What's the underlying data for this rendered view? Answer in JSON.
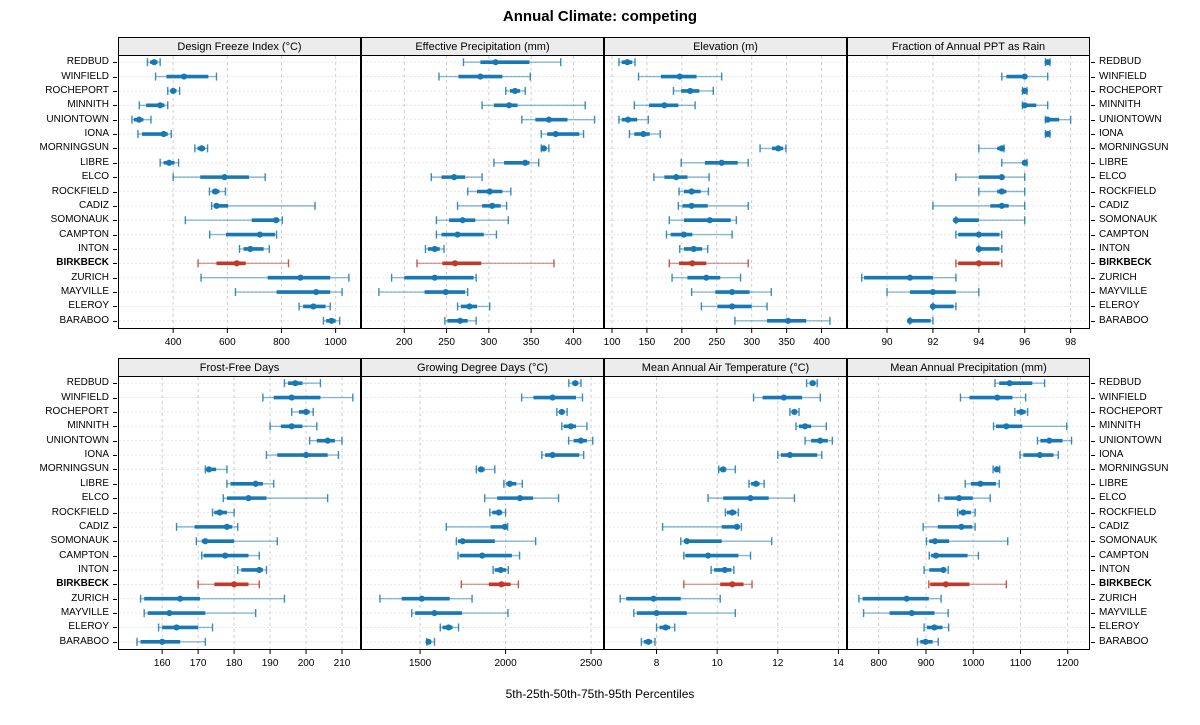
{
  "title": "Annual Climate: competing",
  "caption": "5th-25th-50th-75th-95th Percentiles",
  "colors": {
    "series": "#1878B4",
    "highlight": "#C03A2B",
    "strip_bg": "#ECECEC",
    "grid": "#CFCFCF",
    "border": "#000000"
  },
  "chart_data": {
    "type": "dotplot-percentiles",
    "percentile_labels": [
      "5th",
      "25th",
      "50th",
      "75th",
      "95th"
    ],
    "legend_note": "5th-25th-50th-75th-95th Percentiles",
    "highlight": "BIRKBECK",
    "locations": [
      "REDBUD",
      "WINFIELD",
      "ROCHEPORT",
      "MINNITH",
      "UNIONTOWN",
      "IONA",
      "MORNINGSUN",
      "LIBRE",
      "ELCO",
      "ROCKFIELD",
      "CADIZ",
      "SOMONAUK",
      "CAMPTON",
      "INTON",
      "BIRKBECK",
      "ZURICH",
      "MAYVILLE",
      "ELEROY",
      "BARABOO"
    ],
    "panels": [
      {
        "title": "Design Freeze Index (°C)",
        "xlim": [
          200,
          1090
        ],
        "ticks": [
          400,
          600,
          800,
          1000
        ],
        "series": [
          [
            305,
            315,
            330,
            342,
            352
          ],
          [
            335,
            375,
            440,
            530,
            560
          ],
          [
            380,
            390,
            400,
            412,
            424
          ],
          [
            275,
            300,
            352,
            368,
            380
          ],
          [
            248,
            255,
            274,
            290,
            318
          ],
          [
            270,
            285,
            365,
            380,
            393
          ],
          [
            480,
            490,
            505,
            518,
            527
          ],
          [
            352,
            365,
            385,
            405,
            420
          ],
          [
            400,
            500,
            590,
            680,
            740
          ],
          [
            534,
            543,
            556,
            571,
            593
          ],
          [
            542,
            550,
            560,
            603,
            924
          ],
          [
            445,
            690,
            780,
            792,
            803
          ],
          [
            535,
            595,
            720,
            776,
            782
          ],
          [
            645,
            660,
            685,
            734,
            755
          ],
          [
            492,
            560,
            635,
            668,
            826
          ],
          [
            503,
            749,
            870,
            980,
            1049
          ],
          [
            630,
            782,
            928,
            980,
            1024
          ],
          [
            865,
            880,
            918,
            963,
            980
          ],
          [
            955,
            965,
            985,
            1000,
            1015
          ]
        ]
      },
      {
        "title": "Effective Precipitation (mm)",
        "xlim": [
          150,
          435
        ],
        "ticks": [
          200,
          250,
          300,
          350,
          400
        ],
        "series": [
          [
            270,
            290,
            308,
            348,
            385
          ],
          [
            241,
            264,
            290,
            316,
            349
          ],
          [
            320,
            325,
            331,
            337,
            343
          ],
          [
            292,
            306,
            324,
            334,
            414
          ],
          [
            339,
            355,
            371,
            393,
            425
          ],
          [
            362,
            369,
            379,
            407,
            412
          ],
          [
            362,
            363,
            365,
            367,
            371
          ],
          [
            306,
            318,
            343,
            348,
            359
          ],
          [
            232,
            244,
            259,
            272,
            292
          ],
          [
            275,
            286,
            301,
            316,
            326
          ],
          [
            263,
            292,
            304,
            314,
            321
          ],
          [
            238,
            253,
            269,
            284,
            323
          ],
          [
            238,
            244,
            263,
            294,
            309
          ],
          [
            225,
            228,
            236,
            242,
            247
          ],
          [
            215,
            245,
            260,
            291,
            377
          ],
          [
            185,
            200,
            236,
            282,
            285
          ],
          [
            170,
            224,
            249,
            272,
            275
          ],
          [
            263,
            267,
            277,
            286,
            301
          ],
          [
            248,
            251,
            266,
            275,
            285
          ]
        ]
      },
      {
        "title": "Elevation (m)",
        "xlim": [
          90,
          435
        ],
        "ticks": [
          100,
          150,
          200,
          250,
          300,
          350,
          400
        ],
        "series": [
          [
            110,
            114,
            122,
            129,
            133
          ],
          [
            138,
            170,
            197,
            221,
            257
          ],
          [
            188,
            199,
            212,
            225,
            245
          ],
          [
            132,
            153,
            175,
            195,
            219
          ],
          [
            110,
            114,
            123,
            136,
            152
          ],
          [
            125,
            132,
            145,
            154,
            169
          ],
          [
            312,
            329,
            338,
            345,
            349
          ],
          [
            199,
            233,
            257,
            280,
            295
          ],
          [
            160,
            175,
            192,
            208,
            239
          ],
          [
            196,
            203,
            214,
            227,
            238
          ],
          [
            195,
            201,
            214,
            237,
            295
          ],
          [
            182,
            203,
            240,
            270,
            278
          ],
          [
            178,
            184,
            203,
            215,
            272
          ],
          [
            197,
            203,
            217,
            229,
            237
          ],
          [
            182,
            196,
            215,
            235,
            295
          ],
          [
            186,
            208,
            235,
            255,
            284
          ],
          [
            214,
            248,
            272,
            297,
            328
          ],
          [
            228,
            251,
            272,
            300,
            322
          ],
          [
            276,
            322,
            352,
            378,
            412
          ]
        ]
      },
      {
        "title": "Fraction of Annual PPT as Rain",
        "xlim": [
          88.3,
          98.8
        ],
        "ticks": [
          90,
          92,
          94,
          96,
          98
        ],
        "series": [
          [
            96.9,
            97,
            97,
            97,
            97.1
          ],
          [
            95,
            95.2,
            96,
            96.1,
            97
          ],
          [
            95.9,
            96,
            96,
            96,
            96.1
          ],
          [
            95.9,
            96,
            96,
            96.5,
            97
          ],
          [
            96.9,
            97,
            97,
            97.5,
            98
          ],
          [
            96.9,
            97,
            97,
            97,
            97.1
          ],
          [
            94,
            94.8,
            95,
            95,
            95.1
          ],
          [
            95,
            95.9,
            96,
            96,
            96.1
          ],
          [
            93,
            94,
            95,
            95,
            96
          ],
          [
            94,
            94.8,
            95,
            95.2,
            96
          ],
          [
            92,
            94.5,
            95,
            95.3,
            96
          ],
          [
            93,
            93,
            93,
            94,
            96
          ],
          [
            93,
            93.1,
            94,
            94.9,
            95
          ],
          [
            94,
            94,
            94,
            94.9,
            95
          ],
          [
            93,
            93.1,
            94,
            94.9,
            95
          ],
          [
            88.9,
            89,
            91,
            92,
            93
          ],
          [
            90,
            91,
            92,
            93,
            94
          ],
          [
            92,
            92,
            92,
            92.9,
            93
          ],
          [
            91,
            91,
            91,
            91.9,
            92
          ]
        ]
      },
      {
        "title": "Frost-Free Days",
        "xlim": [
          148,
          215
        ],
        "ticks": [
          160,
          170,
          180,
          190,
          200,
          210
        ],
        "series": [
          [
            194,
            195,
            197,
            199,
            204
          ],
          [
            188,
            191,
            196,
            204,
            213
          ],
          [
            196,
            198,
            200,
            201,
            202
          ],
          [
            190,
            193,
            196,
            199,
            203
          ],
          [
            201,
            203,
            206,
            208,
            210
          ],
          [
            189,
            192,
            200,
            206,
            209
          ],
          [
            172,
            172.5,
            173,
            175,
            178
          ],
          [
            178,
            179,
            186,
            188,
            191
          ],
          [
            177,
            178,
            184,
            189,
            206
          ],
          [
            174,
            174.5,
            176,
            178,
            180
          ],
          [
            164,
            169,
            178,
            179.5,
            181
          ],
          [
            169.5,
            171,
            172,
            180,
            192
          ],
          [
            171,
            171.5,
            177.5,
            184,
            187
          ],
          [
            181,
            182,
            187,
            188,
            189
          ],
          [
            170,
            174.5,
            180,
            184,
            187
          ],
          [
            154,
            155,
            165,
            170.5,
            194
          ],
          [
            155,
            156,
            162,
            172,
            186
          ],
          [
            159,
            160,
            164,
            170,
            174
          ],
          [
            153,
            154,
            160,
            165,
            172
          ]
        ]
      },
      {
        "title": "Growing Degree Days (°C)",
        "xlim": [
          1160,
          2570
        ],
        "ticks": [
          1500,
          2000,
          2500
        ],
        "series": [
          [
            2370,
            2390,
            2408,
            2425,
            2441
          ],
          [
            2094,
            2163,
            2275,
            2412,
            2450
          ],
          [
            2300,
            2312,
            2329,
            2345,
            2360
          ],
          [
            2329,
            2340,
            2382,
            2412,
            2476
          ],
          [
            2369,
            2398,
            2441,
            2476,
            2510
          ],
          [
            2212,
            2231,
            2275,
            2431,
            2457
          ],
          [
            1829,
            1839,
            1857,
            1878,
            1937
          ],
          [
            1990,
            2004,
            2025,
            2063,
            2098
          ],
          [
            1878,
            1951,
            2084,
            2161,
            2310
          ],
          [
            1908,
            1922,
            1961,
            1980,
            2000
          ],
          [
            1653,
            1912,
            1996,
            2006,
            2012
          ],
          [
            1712,
            1722,
            1749,
            1937,
            2176
          ],
          [
            1722,
            1731,
            1863,
            2037,
            2082
          ],
          [
            1927,
            1937,
            1971,
            2004,
            2016
          ],
          [
            1741,
            1902,
            1976,
            2029,
            2075
          ],
          [
            1265,
            1392,
            1510,
            1673,
            1804
          ],
          [
            1451,
            1471,
            1584,
            1745,
            2014
          ],
          [
            1618,
            1631,
            1667,
            1690,
            1725
          ],
          [
            1539,
            1543,
            1549,
            1565,
            1584
          ]
        ]
      },
      {
        "title": "Mean Annual Air Temperature (°C)",
        "xlim": [
          6.3,
          14.25
        ],
        "ticks": [
          8,
          10,
          12,
          14
        ],
        "series": [
          [
            12.95,
            13.05,
            13.15,
            13.25,
            13.3
          ],
          [
            11.2,
            11.5,
            12.2,
            12.8,
            13.4
          ],
          [
            12.4,
            12.45,
            12.55,
            12.62,
            12.7
          ],
          [
            12.6,
            12.7,
            12.9,
            13.1,
            13.6
          ],
          [
            12.9,
            13.1,
            13.4,
            13.65,
            13.8
          ],
          [
            12.0,
            12.1,
            12.4,
            13.3,
            13.45
          ],
          [
            10.05,
            10.08,
            10.2,
            10.3,
            10.6
          ],
          [
            11.05,
            11.12,
            11.28,
            11.4,
            11.55
          ],
          [
            9.7,
            10.2,
            11.1,
            11.7,
            12.55
          ],
          [
            10.27,
            10.32,
            10.5,
            10.63,
            10.7
          ],
          [
            8.2,
            10.15,
            10.65,
            10.75,
            10.8
          ],
          [
            8.8,
            8.9,
            9.0,
            10.15,
            11.8
          ],
          [
            8.9,
            8.95,
            9.7,
            10.7,
            11.1
          ],
          [
            9.8,
            9.9,
            10.25,
            10.47,
            10.55
          ],
          [
            8.9,
            10.1,
            10.5,
            10.87,
            11.15
          ],
          [
            6.8,
            7.0,
            7.9,
            8.8,
            10.1
          ],
          [
            7.25,
            7.35,
            8.0,
            9.0,
            10.6
          ],
          [
            8.0,
            8.1,
            8.3,
            8.45,
            8.6
          ],
          [
            7.5,
            7.58,
            7.73,
            7.85,
            7.95
          ]
        ]
      },
      {
        "title": "Mean Annual Precipitation (mm)",
        "xlim": [
          735,
          1245
        ],
        "ticks": [
          800,
          900,
          1000,
          1100,
          1200
        ],
        "series": [
          [
            1046,
            1055,
            1077,
            1125,
            1151
          ],
          [
            973,
            992,
            1051,
            1083,
            1111
          ],
          [
            1088,
            1092,
            1102,
            1111,
            1115
          ],
          [
            1043,
            1048,
            1070,
            1104,
            1198
          ],
          [
            1136,
            1142,
            1161,
            1189,
            1208
          ],
          [
            1099,
            1106,
            1141,
            1170,
            1180
          ],
          [
            1042,
            1045,
            1050,
            1053,
            1056
          ],
          [
            983,
            995,
            1015,
            1048,
            1055
          ],
          [
            927,
            939,
            970,
            999,
            1036
          ],
          [
            967,
            970,
            979,
            995,
            1004
          ],
          [
            894,
            925,
            975,
            998,
            1004
          ],
          [
            901,
            907,
            919,
            949,
            1073
          ],
          [
            907,
            911,
            921,
            988,
            1011
          ],
          [
            896,
            907,
            937,
            940,
            947
          ],
          [
            906,
            909,
            942,
            992,
            1070
          ],
          [
            758,
            766,
            859,
            906,
            932
          ],
          [
            768,
            823,
            870,
            918,
            947
          ],
          [
            896,
            902,
            918,
            935,
            948
          ],
          [
            882,
            888,
            899,
            914,
            926
          ]
        ]
      }
    ]
  }
}
